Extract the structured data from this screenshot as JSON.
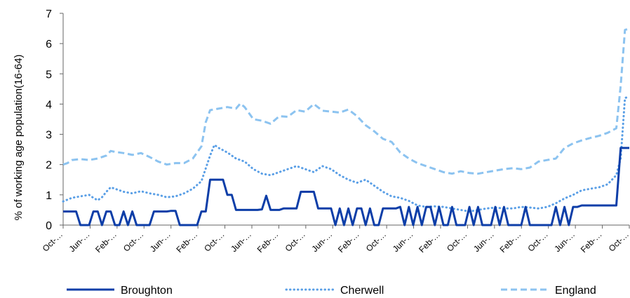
{
  "chart_data": {
    "type": "line",
    "ylabel": "% of working age population(16-64)",
    "ylim": [
      0,
      7
    ],
    "yticks": [
      "0",
      "1",
      "2",
      "3",
      "4",
      "5",
      "6",
      "7"
    ],
    "x_tick_labels": [
      "Oct-…",
      "Jun-…",
      "Feb-…",
      "Oct-…",
      "Jun-…",
      "Feb-…",
      "Oct-…",
      "Jun-…",
      "Feb-…",
      "Oct-…",
      "Jun-…",
      "Feb-…",
      "Oct-…",
      "Jun-…",
      "Feb-…",
      "Oct-…",
      "Jun-…",
      "Feb-…",
      "Oct-…",
      "Jun-…",
      "Feb-…",
      "Oct-…"
    ],
    "legend_position": "bottom",
    "series": [
      {
        "name": "Broughton",
        "color": "#0d3ea8",
        "style": "solid",
        "points": [
          [
            0,
            0.45
          ],
          [
            2,
            0.45
          ],
          [
            3,
            0.45
          ],
          [
            4,
            0
          ],
          [
            6,
            0
          ],
          [
            7,
            0.45
          ],
          [
            8,
            0.45
          ],
          [
            9,
            0
          ],
          [
            10,
            0.45
          ],
          [
            11,
            0.45
          ],
          [
            12,
            0
          ],
          [
            13,
            0
          ],
          [
            14,
            0.45
          ],
          [
            15,
            0
          ],
          [
            16,
            0.45
          ],
          [
            17,
            0
          ],
          [
            20,
            0
          ],
          [
            21,
            0.45
          ],
          [
            24,
            0.45
          ],
          [
            25,
            0.47
          ],
          [
            26,
            0.47
          ],
          [
            27,
            0
          ],
          [
            31,
            0
          ],
          [
            32,
            0.45
          ],
          [
            33,
            0.45
          ],
          [
            34,
            1.5
          ],
          [
            37,
            1.5
          ],
          [
            38,
            1.0
          ],
          [
            39,
            1.0
          ],
          [
            40,
            0.5
          ],
          [
            45,
            0.5
          ],
          [
            46,
            0.52
          ],
          [
            47,
            0.97
          ],
          [
            48,
            0.5
          ],
          [
            50,
            0.5
          ],
          [
            51,
            0.55
          ],
          [
            54,
            0.55
          ],
          [
            55,
            1.1
          ],
          [
            58,
            1.1
          ],
          [
            59,
            0.55
          ],
          [
            62,
            0.55
          ],
          [
            63,
            0
          ],
          [
            64,
            0.55
          ],
          [
            65,
            0
          ],
          [
            66,
            0.55
          ],
          [
            67,
            0
          ],
          [
            68,
            0.55
          ],
          [
            69,
            0.55
          ],
          [
            70,
            0
          ],
          [
            71,
            0.55
          ],
          [
            72,
            0
          ],
          [
            73,
            0
          ],
          [
            74,
            0.55
          ],
          [
            77,
            0.55
          ],
          [
            78,
            0.6
          ],
          [
            79,
            0
          ],
          [
            80,
            0.6
          ],
          [
            81,
            0
          ],
          [
            82,
            0.6
          ],
          [
            83,
            0
          ],
          [
            84,
            0.6
          ],
          [
            85,
            0.6
          ],
          [
            86,
            0
          ],
          [
            87,
            0.6
          ],
          [
            88,
            0
          ],
          [
            89,
            0
          ],
          [
            90,
            0.6
          ],
          [
            91,
            0
          ],
          [
            93,
            0
          ],
          [
            94,
            0.6
          ],
          [
            95,
            0
          ],
          [
            96,
            0.6
          ],
          [
            97,
            0
          ],
          [
            99,
            0
          ],
          [
            100,
            0.6
          ],
          [
            101,
            0
          ],
          [
            102,
            0.6
          ],
          [
            103,
            0
          ],
          [
            106,
            0
          ],
          [
            107,
            0.6
          ],
          [
            108,
            0
          ],
          [
            113,
            0
          ],
          [
            114,
            0.6
          ],
          [
            115,
            0
          ],
          [
            116,
            0.6
          ],
          [
            117,
            0
          ],
          [
            118,
            0.6
          ],
          [
            119,
            0.6
          ],
          [
            120,
            0.65
          ],
          [
            128,
            0.65
          ],
          [
            129,
            2.55
          ],
          [
            131,
            2.55
          ]
        ]
      },
      {
        "name": "Cherwell",
        "color": "#5a9fe6",
        "style": "dotted",
        "points": [
          [
            0,
            0.78
          ],
          [
            2,
            0.9
          ],
          [
            4,
            0.95
          ],
          [
            6,
            1.0
          ],
          [
            7,
            0.9
          ],
          [
            8,
            0.82
          ],
          [
            9,
            0.92
          ],
          [
            10,
            1.1
          ],
          [
            11,
            1.25
          ],
          [
            12,
            1.2
          ],
          [
            14,
            1.1
          ],
          [
            16,
            1.05
          ],
          [
            18,
            1.12
          ],
          [
            20,
            1.05
          ],
          [
            22,
            1.0
          ],
          [
            24,
            0.92
          ],
          [
            26,
            0.95
          ],
          [
            28,
            1.05
          ],
          [
            30,
            1.2
          ],
          [
            32,
            1.45
          ],
          [
            34,
            2.3
          ],
          [
            35,
            2.65
          ],
          [
            36,
            2.55
          ],
          [
            38,
            2.4
          ],
          [
            40,
            2.2
          ],
          [
            42,
            2.1
          ],
          [
            44,
            1.85
          ],
          [
            46,
            1.7
          ],
          [
            48,
            1.65
          ],
          [
            50,
            1.75
          ],
          [
            52,
            1.85
          ],
          [
            54,
            1.95
          ],
          [
            56,
            1.85
          ],
          [
            58,
            1.75
          ],
          [
            60,
            1.95
          ],
          [
            62,
            1.85
          ],
          [
            64,
            1.65
          ],
          [
            66,
            1.5
          ],
          [
            68,
            1.4
          ],
          [
            70,
            1.5
          ],
          [
            72,
            1.3
          ],
          [
            74,
            1.1
          ],
          [
            76,
            0.95
          ],
          [
            78,
            0.9
          ],
          [
            80,
            0.8
          ],
          [
            82,
            0.65
          ],
          [
            84,
            0.6
          ],
          [
            86,
            0.62
          ],
          [
            88,
            0.6
          ],
          [
            90,
            0.55
          ],
          [
            92,
            0.5
          ],
          [
            94,
            0.45
          ],
          [
            96,
            0.5
          ],
          [
            98,
            0.55
          ],
          [
            100,
            0.58
          ],
          [
            102,
            0.55
          ],
          [
            104,
            0.55
          ],
          [
            106,
            0.6
          ],
          [
            108,
            0.58
          ],
          [
            110,
            0.55
          ],
          [
            112,
            0.6
          ],
          [
            114,
            0.72
          ],
          [
            116,
            0.88
          ],
          [
            118,
            1.0
          ],
          [
            120,
            1.15
          ],
          [
            122,
            1.2
          ],
          [
            124,
            1.25
          ],
          [
            126,
            1.35
          ],
          [
            128,
            1.65
          ],
          [
            129,
            2.2
          ],
          [
            130,
            4.2
          ],
          [
            131,
            4.25
          ]
        ]
      },
      {
        "name": "England",
        "color": "#8cc3f0",
        "style": "dashed",
        "points": [
          [
            0,
            2.0
          ],
          [
            1,
            2.05
          ],
          [
            2,
            2.15
          ],
          [
            4,
            2.18
          ],
          [
            6,
            2.15
          ],
          [
            8,
            2.2
          ],
          [
            10,
            2.3
          ],
          [
            11,
            2.45
          ],
          [
            12,
            2.42
          ],
          [
            14,
            2.38
          ],
          [
            16,
            2.32
          ],
          [
            18,
            2.38
          ],
          [
            20,
            2.25
          ],
          [
            22,
            2.1
          ],
          [
            24,
            2.0
          ],
          [
            26,
            2.05
          ],
          [
            28,
            2.05
          ],
          [
            30,
            2.2
          ],
          [
            32,
            2.6
          ],
          [
            33,
            3.4
          ],
          [
            34,
            3.8
          ],
          [
            36,
            3.85
          ],
          [
            38,
            3.9
          ],
          [
            40,
            3.85
          ],
          [
            41,
            4.02
          ],
          [
            42,
            3.9
          ],
          [
            44,
            3.5
          ],
          [
            46,
            3.45
          ],
          [
            48,
            3.35
          ],
          [
            50,
            3.6
          ],
          [
            52,
            3.58
          ],
          [
            54,
            3.8
          ],
          [
            56,
            3.75
          ],
          [
            58,
            4.0
          ],
          [
            60,
            3.78
          ],
          [
            62,
            3.75
          ],
          [
            64,
            3.72
          ],
          [
            66,
            3.82
          ],
          [
            68,
            3.6
          ],
          [
            70,
            3.3
          ],
          [
            72,
            3.1
          ],
          [
            74,
            2.85
          ],
          [
            76,
            2.75
          ],
          [
            78,
            2.4
          ],
          [
            80,
            2.2
          ],
          [
            82,
            2.05
          ],
          [
            84,
            1.95
          ],
          [
            86,
            1.85
          ],
          [
            88,
            1.75
          ],
          [
            90,
            1.7
          ],
          [
            92,
            1.78
          ],
          [
            94,
            1.72
          ],
          [
            96,
            1.7
          ],
          [
            98,
            1.75
          ],
          [
            100,
            1.8
          ],
          [
            102,
            1.85
          ],
          [
            104,
            1.88
          ],
          [
            106,
            1.85
          ],
          [
            108,
            1.9
          ],
          [
            110,
            2.1
          ],
          [
            112,
            2.15
          ],
          [
            114,
            2.2
          ],
          [
            116,
            2.55
          ],
          [
            118,
            2.7
          ],
          [
            120,
            2.8
          ],
          [
            122,
            2.88
          ],
          [
            124,
            2.95
          ],
          [
            126,
            3.05
          ],
          [
            128,
            3.2
          ],
          [
            129,
            4.6
          ],
          [
            130,
            6.45
          ],
          [
            131,
            6.5
          ]
        ]
      }
    ]
  }
}
